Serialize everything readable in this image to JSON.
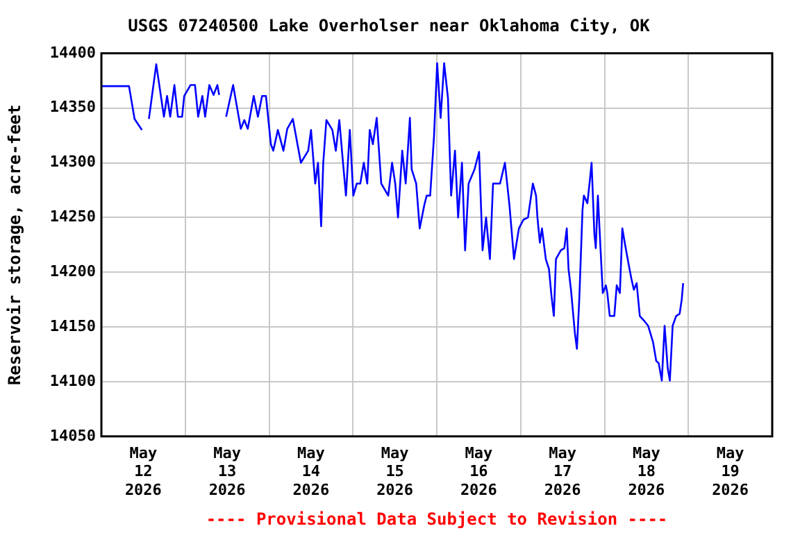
{
  "chart_data": {
    "type": "line",
    "title": "USGS 07240500 Lake Overholser near Oklahoma City, OK",
    "ylabel": "Reservoir storage, acre-feet",
    "annotations": [
      "---- Provisional Data Subject to Revision ----"
    ],
    "x": [
      "2026-05-12T00:00",
      "2026-05-12T07:54",
      "2026-05-12T09:30",
      "2026-05-12T11:36",
      "2026-05-12T13:30",
      "2026-05-12T13:36",
      "2026-05-12T15:42",
      "2026-05-12T17:54",
      "2026-05-12T18:48",
      "2026-05-12T19:42",
      "2026-05-12T20:54",
      "2026-05-12T21:54",
      "2026-05-12T23:06",
      "2026-05-12T23:42",
      "2026-05-13T01:30",
      "2026-05-13T02:48",
      "2026-05-13T03:42",
      "2026-05-13T04:54",
      "2026-05-13T05:42",
      "2026-05-13T06:54",
      "2026-05-13T08:06",
      "2026-05-13T09:12",
      "2026-05-13T09:42",
      "2026-05-13T11:00",
      "2026-05-13T11:42",
      "2026-05-13T13:42",
      "2026-05-13T15:54",
      "2026-05-13T16:54",
      "2026-05-13T17:54",
      "2026-05-13T19:36",
      "2026-05-13T20:48",
      "2026-05-13T22:00",
      "2026-05-13T23:06",
      "2026-05-14T00:30",
      "2026-05-14T01:12",
      "2026-05-14T02:30",
      "2026-05-14T04:06",
      "2026-05-14T05:12",
      "2026-05-14T06:48",
      "2026-05-14T09:06",
      "2026-05-14T11:12",
      "2026-05-14T12:00",
      "2026-05-14T13:12",
      "2026-05-14T14:00",
      "2026-05-14T14:54",
      "2026-05-14T15:30",
      "2026-05-14T16:24",
      "2026-05-14T18:06",
      "2026-05-14T19:06",
      "2026-05-14T20:06",
      "2026-05-14T21:06",
      "2026-05-14T22:00",
      "2026-05-14T23:06",
      "2026-05-15T00:06",
      "2026-05-15T01:06",
      "2026-05-15T02:06",
      "2026-05-15T03:06",
      "2026-05-15T04:06",
      "2026-05-15T04:48",
      "2026-05-15T05:42",
      "2026-05-15T06:48",
      "2026-05-15T08:06",
      "2026-05-15T10:06",
      "2026-05-15T11:12",
      "2026-05-15T12:06",
      "2026-05-15T12:54",
      "2026-05-15T14:06",
      "2026-05-15T15:06",
      "2026-05-15T16:18",
      "2026-05-15T16:48",
      "2026-05-15T18:06",
      "2026-05-15T19:06",
      "2026-05-15T20:24",
      "2026-05-15T21:06",
      "2026-05-15T22:06",
      "2026-05-15T23:12",
      "2026-05-16T00:06",
      "2026-05-16T01:06",
      "2026-05-16T02:06",
      "2026-05-16T03:12",
      "2026-05-16T04:06",
      "2026-05-16T05:12",
      "2026-05-16T06:06",
      "2026-05-16T07:12",
      "2026-05-16T08:06",
      "2026-05-16T09:06",
      "2026-05-16T10:48",
      "2026-05-16T12:06",
      "2026-05-16T13:06",
      "2026-05-16T14:06",
      "2026-05-16T15:12",
      "2026-05-16T16:06",
      "2026-05-16T18:06",
      "2026-05-16T19:30",
      "2026-05-16T20:48",
      "2026-05-16T22:06",
      "2026-05-16T23:30",
      "2026-05-17T00:48",
      "2026-05-17T02:06",
      "2026-05-17T03:30",
      "2026-05-17T04:24",
      "2026-05-17T04:48",
      "2026-05-17T05:30",
      "2026-05-17T06:06",
      "2026-05-17T07:12",
      "2026-05-17T08:06",
      "2026-05-17T08:48",
      "2026-05-17T09:30",
      "2026-05-17T10:06",
      "2026-05-17T11:30",
      "2026-05-17T12:30",
      "2026-05-17T13:12",
      "2026-05-17T13:42",
      "2026-05-17T14:24",
      "2026-05-17T15:30",
      "2026-05-17T16:06",
      "2026-05-17T16:48",
      "2026-05-17T17:42",
      "2026-05-17T18:06",
      "2026-05-17T19:06",
      "2026-05-17T19:54",
      "2026-05-17T20:18",
      "2026-05-17T21:06",
      "2026-05-17T21:30",
      "2026-05-17T22:06",
      "2026-05-17T22:48",
      "2026-05-17T23:30",
      "2026-05-18T00:24",
      "2026-05-18T00:48",
      "2026-05-18T01:30",
      "2026-05-18T02:48",
      "2026-05-18T03:30",
      "2026-05-18T04:24",
      "2026-05-18T05:06",
      "2026-05-18T05:54",
      "2026-05-18T06:48",
      "2026-05-18T07:42",
      "2026-05-18T08:24",
      "2026-05-18T09:12",
      "2026-05-18T10:06",
      "2026-05-18T11:30",
      "2026-05-18T12:30",
      "2026-05-18T13:54",
      "2026-05-18T14:48",
      "2026-05-18T15:30",
      "2026-05-18T16:24",
      "2026-05-18T17:12",
      "2026-05-18T18:06",
      "2026-05-18T18:42",
      "2026-05-18T19:30",
      "2026-05-18T20:30",
      "2026-05-18T21:30",
      "2026-05-18T22:06",
      "2026-05-18T22:30"
    ],
    "series": [
      {
        "color": "#0000ff",
        "values": [
          14370,
          14370,
          14340,
          14330,
          null,
          14340,
          14390,
          14342,
          14361,
          14342,
          14371,
          14342,
          14342,
          14361,
          14371,
          14371,
          14342,
          14361,
          14342,
          14371,
          14362,
          14371,
          14362,
          null,
          14342,
          14371,
          14331,
          14339,
          14331,
          14361,
          14342,
          14361,
          14361,
          14317,
          14311,
          14330,
          14311,
          14331,
          14340,
          14300,
          14311,
          14330,
          14281,
          14300,
          14242,
          14300,
          14339,
          14330,
          14311,
          14339,
          14302,
          14270,
          14330,
          14270,
          14281,
          14281,
          14300,
          14281,
          14330,
          14317,
          14341,
          14281,
          14270,
          14300,
          14281,
          14250,
          14311,
          14281,
          14341,
          14294,
          14281,
          14240,
          14261,
          14270,
          14270,
          14324,
          14391,
          14341,
          14391,
          14359,
          14270,
          14311,
          14250,
          14300,
          14220,
          14281,
          14294,
          14310,
          14220,
          14250,
          14212,
          14281,
          14281,
          14300,
          14261,
          14212,
          14240,
          14248,
          14250,
          14281,
          14270,
          14250,
          14227,
          14240,
          14212,
          14203,
          14179,
          14160,
          14212,
          14220,
          14222,
          14240,
          14203,
          14184,
          14145,
          14130,
          14177,
          14257,
          14270,
          14263,
          14287,
          14300,
          14235,
          14222,
          14270,
          14225,
          14181,
          14188,
          14181,
          14160,
          14160,
          14188,
          14181,
          14240,
          14225,
          14209,
          14194,
          14184,
          14190,
          14160,
          14155,
          14151,
          14136,
          14119,
          14117,
          14101,
          14151,
          14112,
          14101,
          14151,
          14160,
          14162,
          14175,
          14190
        ]
      }
    ],
    "xlim": [
      "2026-05-12",
      "2026-05-20"
    ],
    "xticks": [
      {
        "value": "2026-05-12T12:00",
        "label": "May 12 2026"
      },
      {
        "value": "2026-05-13",
        "label": null
      },
      {
        "value": "2026-05-13T12:00",
        "label": "May 13 2026"
      },
      {
        "value": "2026-05-14",
        "label": null
      },
      {
        "value": "2026-05-14T12:00",
        "label": "May 14 2026"
      },
      {
        "value": "2026-05-15",
        "label": null
      },
      {
        "value": "2026-05-15T12:00",
        "label": "May 15 2026"
      },
      {
        "value": "2026-05-16",
        "label": null
      },
      {
        "value": "2026-05-16T12:00",
        "label": "May 16 2026"
      },
      {
        "value": "2026-05-17",
        "label": null
      },
      {
        "value": "2026-05-17T12:00",
        "label": "May 17 2026"
      },
      {
        "value": "2026-05-18",
        "label": null
      },
      {
        "value": "2026-05-18T12:00",
        "label": "May 18 2026"
      },
      {
        "value": "2026-05-19",
        "label": null
      },
      {
        "value": "2026-05-19T12:00",
        "label": "May 19 2026"
      }
    ],
    "ylim": [
      14050,
      14400
    ],
    "yticks": [
      14050,
      14100,
      14150,
      14200,
      14250,
      14300,
      14350,
      14400
    ],
    "grid": true,
    "legend": false,
    "marker": "none",
    "line_style": "solid"
  }
}
